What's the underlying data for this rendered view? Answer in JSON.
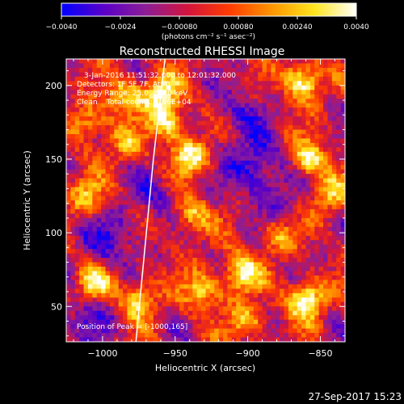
{
  "chart_data": {
    "type": "heatmap",
    "title": "Reconstructed RHESSI Image",
    "xlabel": "Heliocentric X (arcsec)",
    "ylabel": "Heliocentric Y (arcsec)",
    "xlim": [
      -1025,
      -833
    ],
    "ylim": [
      26,
      218
    ],
    "x_ticks": [
      -1000,
      -950,
      -900,
      -850
    ],
    "x_tick_labels": [
      "−1000",
      "−950",
      "−900",
      "−850"
    ],
    "y_ticks": [
      50,
      100,
      150,
      200
    ],
    "y_tick_labels": [
      "50",
      "100",
      "150",
      "200"
    ],
    "grid": false,
    "colorbar": {
      "min": -0.004,
      "max": 0.004,
      "ticks": [
        -0.004,
        -0.0024,
        -0.0008,
        0.0008,
        0.0024,
        0.004
      ],
      "tick_labels": [
        "−0.0040",
        "−0.0024",
        "−0.00080",
        "0.00080",
        "0.00240",
        "0.0040"
      ],
      "unit_label": "(photons cm⁻² s⁻¹ asec⁻²)",
      "colormap": [
        "#0000ff",
        "#5a00c8",
        "#8c1e96",
        "#d2143c",
        "#ff3c00",
        "#ff9600",
        "#ffe61e",
        "#ffffff"
      ]
    },
    "grid_cells": 64,
    "bright_sources": [
      {
        "x": -985,
        "y": 192,
        "level": 0.62
      },
      {
        "x": -960,
        "y": 195,
        "level": 0.78
      },
      {
        "x": -862,
        "y": 203,
        "level": 0.9
      },
      {
        "x": -955,
        "y": 175,
        "level": 0.7
      },
      {
        "x": -940,
        "y": 152,
        "level": 0.74
      },
      {
        "x": -940,
        "y": 112,
        "level": 0.6
      },
      {
        "x": -1010,
        "y": 125,
        "level": 0.55
      },
      {
        "x": -985,
        "y": 160,
        "level": 0.45
      },
      {
        "x": -1005,
        "y": 65,
        "level": 0.72
      },
      {
        "x": -975,
        "y": 55,
        "level": 0.65
      },
      {
        "x": -932,
        "y": 60,
        "level": 0.62
      },
      {
        "x": -905,
        "y": 72,
        "level": 0.8
      },
      {
        "x": -860,
        "y": 55,
        "level": 0.92
      },
      {
        "x": -858,
        "y": 150,
        "level": 0.75
      },
      {
        "x": -880,
        "y": 98,
        "level": 0.5
      },
      {
        "x": -900,
        "y": 40,
        "level": 0.55
      },
      {
        "x": -843,
        "y": 125,
        "level": 0.55
      },
      {
        "x": -1010,
        "y": 175,
        "level": 0.55
      }
    ],
    "dark_regions": [
      {
        "x": -895,
        "y": 145,
        "level": 0.8
      },
      {
        "x": -995,
        "y": 95,
        "level": 0.65
      },
      {
        "x": -905,
        "y": 180,
        "level": 0.5
      },
      {
        "x": -1010,
        "y": 45,
        "level": 0.55
      },
      {
        "x": -965,
        "y": 125,
        "level": 0.45
      },
      {
        "x": -880,
        "y": 120,
        "level": 0.4
      }
    ],
    "limb_line": [
      [
        -977,
        26
      ],
      [
        -965,
        150
      ],
      [
        -957,
        218
      ]
    ],
    "annotations": [
      "3-Jan-2016 11:51:32.000 to 12:01:32.000",
      "Detectors: 1F 5F 7F, Att 0",
      "Energy Range: 25.0 - 50.0 keV",
      "Clean    Total counts: 1.06E+04",
      "Position of Peak = [-1000,165]"
    ],
    "footer_timestamp": "27-Sep-2017 15:23"
  }
}
